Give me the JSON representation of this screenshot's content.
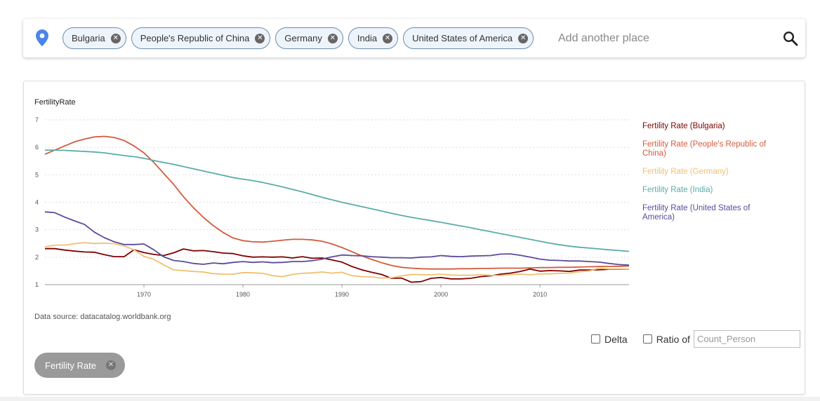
{
  "search": {
    "chips": [
      {
        "label": "Bulgaria"
      },
      {
        "label": "People's Republic of China"
      },
      {
        "label": "Germany"
      },
      {
        "label": "India"
      },
      {
        "label": "United States of America"
      }
    ],
    "remove_glyph": "✕",
    "placeholder": "Add another place",
    "pin_icon": "map-pin-icon",
    "search_icon": "search-icon"
  },
  "chart": {
    "source": "Data source: datacatalog.worldbank.org"
  },
  "chart_data": {
    "type": "line",
    "title": "FertilityRate",
    "xlabel": "",
    "ylabel": "",
    "xlim": [
      1960,
      2019
    ],
    "ylim": [
      1,
      7
    ],
    "x_ticks": [
      1970,
      1980,
      1990,
      2000,
      2010
    ],
    "y_ticks": [
      1,
      2,
      3,
      4,
      5,
      6,
      7
    ],
    "grid": "horizontal dotted",
    "legend_position": "right",
    "x": [
      1960,
      1961,
      1962,
      1963,
      1964,
      1965,
      1966,
      1967,
      1968,
      1969,
      1970,
      1971,
      1972,
      1973,
      1974,
      1975,
      1976,
      1977,
      1978,
      1979,
      1980,
      1981,
      1982,
      1983,
      1984,
      1985,
      1986,
      1987,
      1988,
      1989,
      1990,
      1991,
      1992,
      1993,
      1994,
      1995,
      1996,
      1997,
      1998,
      1999,
      2000,
      2001,
      2002,
      2003,
      2004,
      2005,
      2006,
      2007,
      2008,
      2009,
      2010,
      2011,
      2012,
      2013,
      2014,
      2015,
      2016,
      2017,
      2018,
      2019
    ],
    "series": [
      {
        "name": "Fertility Rate (Bulgaria)",
        "color": "#7f0000",
        "values": [
          2.31,
          2.31,
          2.26,
          2.22,
          2.19,
          2.18,
          2.09,
          2.02,
          2.02,
          2.27,
          2.17,
          2.1,
          2.06,
          2.16,
          2.3,
          2.23,
          2.24,
          2.2,
          2.15,
          2.13,
          2.05,
          2.0,
          2.01,
          2.0,
          2.01,
          1.97,
          2.02,
          1.96,
          1.97,
          1.9,
          1.82,
          1.66,
          1.54,
          1.45,
          1.37,
          1.23,
          1.24,
          1.09,
          1.11,
          1.23,
          1.26,
          1.21,
          1.21,
          1.23,
          1.29,
          1.32,
          1.38,
          1.42,
          1.48,
          1.57,
          1.49,
          1.51,
          1.5,
          1.48,
          1.53,
          1.53,
          1.54,
          1.56,
          1.56,
          1.56
        ]
      },
      {
        "name": "Fertility Rate (People's Republic of China)",
        "color": "#d35b3c",
        "values": [
          5.75,
          5.9,
          6.05,
          6.2,
          6.3,
          6.38,
          6.4,
          6.36,
          6.25,
          6.05,
          5.8,
          5.45,
          5.05,
          4.65,
          4.2,
          3.8,
          3.45,
          3.15,
          2.9,
          2.7,
          2.6,
          2.56,
          2.55,
          2.58,
          2.62,
          2.65,
          2.65,
          2.63,
          2.58,
          2.48,
          2.35,
          2.2,
          2.05,
          1.92,
          1.8,
          1.7,
          1.63,
          1.6,
          1.58,
          1.57,
          1.57,
          1.57,
          1.58,
          1.58,
          1.59,
          1.59,
          1.6,
          1.6,
          1.6,
          1.61,
          1.62,
          1.62,
          1.63,
          1.63,
          1.64,
          1.65,
          1.66,
          1.66,
          1.67,
          1.68
        ]
      },
      {
        "name": "Fertility Rate (Germany)",
        "color": "#f0c070",
        "values": [
          2.37,
          2.44,
          2.44,
          2.49,
          2.53,
          2.5,
          2.51,
          2.49,
          2.41,
          2.27,
          2.03,
          1.92,
          1.72,
          1.54,
          1.51,
          1.48,
          1.46,
          1.4,
          1.38,
          1.38,
          1.44,
          1.43,
          1.41,
          1.33,
          1.29,
          1.37,
          1.41,
          1.43,
          1.46,
          1.42,
          1.45,
          1.33,
          1.29,
          1.28,
          1.24,
          1.25,
          1.32,
          1.37,
          1.36,
          1.36,
          1.38,
          1.35,
          1.34,
          1.34,
          1.36,
          1.34,
          1.33,
          1.37,
          1.38,
          1.36,
          1.39,
          1.39,
          1.41,
          1.42,
          1.47,
          1.5,
          1.6,
          1.57,
          1.57,
          1.56
        ]
      },
      {
        "name": "Fertility Rate (India)",
        "color": "#5aada6",
        "values": [
          5.9,
          5.9,
          5.89,
          5.87,
          5.85,
          5.83,
          5.8,
          5.75,
          5.7,
          5.66,
          5.6,
          5.52,
          5.45,
          5.38,
          5.3,
          5.22,
          5.14,
          5.06,
          4.98,
          4.9,
          4.84,
          4.79,
          4.72,
          4.64,
          4.56,
          4.47,
          4.38,
          4.28,
          4.18,
          4.09,
          4.0,
          3.92,
          3.84,
          3.76,
          3.68,
          3.6,
          3.52,
          3.45,
          3.39,
          3.33,
          3.27,
          3.2,
          3.14,
          3.07,
          3.0,
          2.93,
          2.86,
          2.79,
          2.72,
          2.65,
          2.58,
          2.51,
          2.45,
          2.4,
          2.36,
          2.33,
          2.3,
          2.27,
          2.24,
          2.21
        ]
      },
      {
        "name": "Fertility Rate (United States of America)",
        "color": "#5a4b9a",
        "values": [
          3.65,
          3.62,
          3.46,
          3.32,
          3.19,
          2.91,
          2.71,
          2.56,
          2.46,
          2.46,
          2.48,
          2.27,
          2.01,
          1.88,
          1.84,
          1.77,
          1.74,
          1.79,
          1.76,
          1.81,
          1.84,
          1.81,
          1.83,
          1.8,
          1.81,
          1.84,
          1.84,
          1.87,
          1.93,
          2.01,
          2.08,
          2.06,
          2.05,
          2.02,
          2.0,
          1.98,
          1.98,
          1.97,
          2.0,
          2.01,
          2.06,
          2.03,
          2.02,
          2.04,
          2.05,
          2.06,
          2.11,
          2.12,
          2.07,
          2.0,
          1.93,
          1.89,
          1.88,
          1.86,
          1.86,
          1.84,
          1.82,
          1.77,
          1.73,
          1.71
        ]
      }
    ]
  },
  "controls": {
    "delta_label": "Delta",
    "ratio_label": "Ratio of",
    "ratio_placeholder": "Count_Person"
  },
  "stat_chip": {
    "label": "Fertility Rate",
    "remove_glyph": "✕"
  }
}
